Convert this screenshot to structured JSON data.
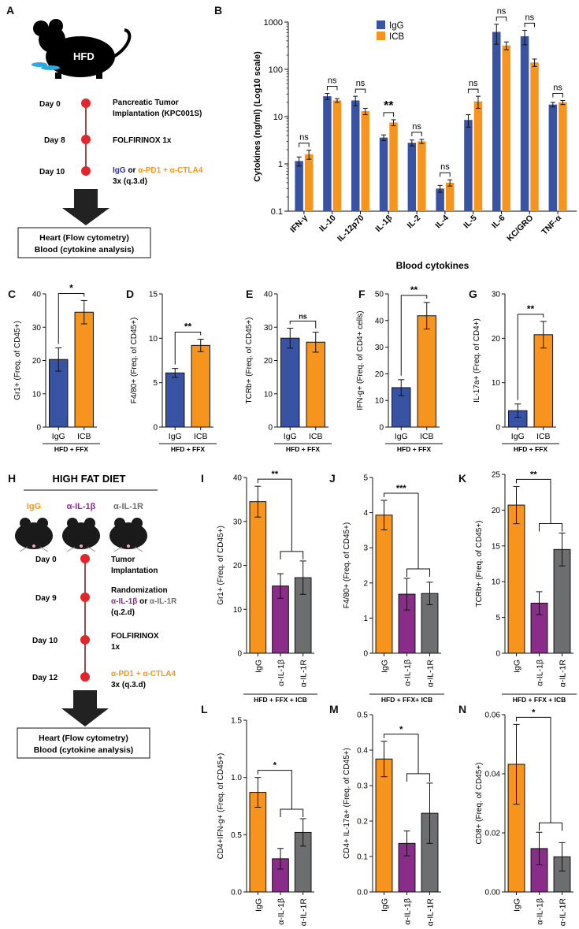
{
  "colors": {
    "igg_blue": "#3853a4",
    "icb_orange": "#f7941d",
    "il1b_purple": "#8b2c8b",
    "il1r_gray": "#6d6e70",
    "dot_red": "#e2262b",
    "text_blue": "#2e3192",
    "text_orange": "#f7941d"
  },
  "panel_letters": [
    "A",
    "B",
    "C",
    "D",
    "E",
    "F",
    "G",
    "H",
    "I",
    "J",
    "K",
    "L",
    "M",
    "N"
  ],
  "schematic_a": {
    "mouse_label": "HFD",
    "timeline": [
      {
        "day": "Day 0",
        "desc": [
          "Pancreatic Tumor",
          "Implantation (KPC001S)"
        ]
      },
      {
        "day": "Day 8",
        "desc": [
          "FOLFIRINOX 1x"
        ]
      },
      {
        "day": "Day 10",
        "desc_igg": "IgG",
        "desc_or": " or ",
        "desc_icb": "α-PD1 + α-CTLA4",
        "desc2": "3x (q.3.d)"
      }
    ],
    "box_lines": [
      "Heart (Flow cytometry)",
      "Blood (cytokine analysis)"
    ]
  },
  "schematic_h": {
    "title": "HIGH FAT DIET",
    "groups": [
      "IgG",
      "α-IL-1β",
      "α-IL-1R"
    ],
    "timeline": [
      {
        "day": "Day 0",
        "desc": [
          "Tumor",
          "Implantation"
        ]
      },
      {
        "day": "Day 9",
        "desc": [
          "Randomization"
        ],
        "desc_a": "α-IL-1β",
        "desc_or": " or ",
        "desc_b": "α-IL-1R",
        "desc3": "(q.2.d)"
      },
      {
        "day": "Day 10",
        "desc": [
          "FOLFIRINOX",
          "1x"
        ]
      },
      {
        "day": "Day 12",
        "desc_icb": "α-PD1 + α-CTLA4",
        "desc2": "3x (q.3.d)"
      }
    ],
    "box_lines": [
      "Heart (Flow cytometry)",
      "Blood (cytokine analysis)"
    ]
  },
  "chart_data": [
    {
      "id": "B",
      "type": "bar",
      "scale": "log10",
      "ylabel": "Cytokines (ng/ml) (Log10 scale)",
      "xlabel": "Blood cytokines",
      "ylim": [
        0.1,
        1000
      ],
      "yticks": [
        "0.1",
        "1",
        "10",
        "100",
        "1000"
      ],
      "legend": [
        "IgG",
        "ICB"
      ],
      "categories": [
        "IFN-γ",
        "IL-10",
        "IL-12p70",
        "IL-1β",
        "IL-2",
        "IL-4",
        "IL-5",
        "IL-6",
        "KC/GRO",
        "TNF-α"
      ],
      "series": [
        {
          "name": "IgG",
          "values": [
            1.15,
            27,
            22,
            3.6,
            2.8,
            0.3,
            8.5,
            620,
            500,
            18
          ],
          "errors": [
            0.25,
            4,
            5,
            0.5,
            0.4,
            0.05,
            2.5,
            280,
            170,
            2
          ]
        },
        {
          "name": "ICB",
          "values": [
            1.6,
            22,
            13,
            7.5,
            3.0,
            0.4,
            21,
            320,
            140,
            20
          ],
          "errors": [
            0.35,
            2,
            2,
            1.1,
            0.3,
            0.06,
            6,
            60,
            25,
            2
          ]
        }
      ],
      "significance": [
        "ns",
        "ns",
        "ns",
        "**",
        "ns",
        "ns",
        "ns",
        "ns",
        "ns",
        "ns"
      ]
    },
    {
      "id": "C",
      "type": "bar",
      "ylabel": "Gr1+ (Freq. of CD45+)",
      "ylim": [
        0,
        40
      ],
      "yticks": [
        "0",
        "10",
        "20",
        "30",
        "40"
      ],
      "categories": [
        "IgG",
        "ICB"
      ],
      "values": [
        20.3,
        34.5
      ],
      "errors": [
        3.5,
        3.5
      ],
      "sig": "*",
      "group_label": "HFD + FFX"
    },
    {
      "id": "D",
      "type": "bar",
      "ylabel": "F4/80+ (Freq. of CD45+)",
      "ylim": [
        0,
        15
      ],
      "yticks": [
        "0",
        "5",
        "10",
        "15"
      ],
      "categories": [
        "IgG",
        "ICB"
      ],
      "values": [
        6.1,
        9.2
      ],
      "errors": [
        0.5,
        0.7
      ],
      "sig": "**",
      "group_label": "HFD + FFX"
    },
    {
      "id": "E",
      "type": "bar",
      "ylabel": "TCRb+ (Freq. of CD45+)",
      "ylim": [
        0,
        40
      ],
      "yticks": [
        "0",
        "10",
        "20",
        "30",
        "40"
      ],
      "categories": [
        "IgG",
        "ICB"
      ],
      "values": [
        26.7,
        25.5
      ],
      "errors": [
        3.0,
        3.0
      ],
      "sig": "ns",
      "group_label": "HFD + FFX"
    },
    {
      "id": "F",
      "type": "bar",
      "ylabel": "IFN-g+ (Freq. of CD4+ cells)",
      "ylim": [
        0,
        50
      ],
      "yticks": [
        "0",
        "10",
        "20",
        "30",
        "40",
        "50"
      ],
      "categories": [
        "IgG",
        "ICB"
      ],
      "values": [
        14.8,
        41.8
      ],
      "errors": [
        3.0,
        5.0
      ],
      "sig": "**",
      "group_label": "HFD + FFX"
    },
    {
      "id": "G",
      "type": "bar",
      "ylabel": "IL-17a+ (Freq. of CD4+)",
      "ylim": [
        0,
        30
      ],
      "yticks": [
        "0",
        "10",
        "20",
        "30"
      ],
      "categories": [
        "IgG",
        "ICB"
      ],
      "values": [
        3.7,
        20.8
      ],
      "errors": [
        1.5,
        3.0
      ],
      "sig": "**",
      "group_label": "HFD + FFX"
    },
    {
      "id": "I",
      "type": "bar",
      "ylabel": "Gr1+ (Freq. of CD45+)",
      "ylim": [
        0,
        40
      ],
      "yticks": [
        "0",
        "10",
        "20",
        "30",
        "40"
      ],
      "categories": [
        "IgG",
        "α-IL-1β",
        "α-IL-1R"
      ],
      "values": [
        34.5,
        15.3,
        17.2
      ],
      "errors": [
        3.5,
        2.8,
        3.8
      ],
      "sig": "**",
      "group_label": "HFD + FFX + ICB"
    },
    {
      "id": "J",
      "type": "bar",
      "ylabel": "F4/80+ (Freq. of CD45+)",
      "ylim": [
        0,
        5
      ],
      "yticks": [
        "0",
        "1",
        "2",
        "3",
        "4",
        "5"
      ],
      "categories": [
        "IgG",
        "α-IL-1β",
        "α-IL-1R"
      ],
      "values": [
        3.93,
        1.68,
        1.7
      ],
      "errors": [
        0.42,
        0.45,
        0.32
      ],
      "sig": "***",
      "group_label": "HFD + FFX+ ICB"
    },
    {
      "id": "K",
      "type": "bar",
      "ylabel": "TCRb+ (Freq. of CD45+)",
      "ylim": [
        0,
        25
      ],
      "yticks": [
        "0",
        "5",
        "10",
        "15",
        "20",
        "25"
      ],
      "categories": [
        "IgG",
        "α-IL-1β",
        "α-IL-1R"
      ],
      "values": [
        20.7,
        7.0,
        14.5
      ],
      "errors": [
        2.6,
        1.6,
        2.3
      ],
      "sig": "**",
      "group_label": "HFD + FFX + ICB"
    },
    {
      "id": "L",
      "type": "bar",
      "ylabel": "CD4+IFN-g+ (Freq. of CD45+)",
      "ylim": [
        0,
        1.5
      ],
      "yticks": [
        "0.0",
        "0.5",
        "1.0",
        "1.5"
      ],
      "categories": [
        "IgG",
        "α-IL-1β",
        "α-IL-1R"
      ],
      "values": [
        0.87,
        0.29,
        0.52
      ],
      "errors": [
        0.13,
        0.09,
        0.12
      ],
      "sig": "*",
      "group_label": "HFD + FFX + ICB"
    },
    {
      "id": "M",
      "type": "bar",
      "ylabel": "CD4+ IL-17a+ (Freq. of CD45+)",
      "ylim": [
        0,
        0.5
      ],
      "yticks": [
        "0.0",
        "0.1",
        "0.2",
        "0.3",
        "0.4",
        "0.5"
      ],
      "categories": [
        "IgG",
        "α-IL-1β",
        "α-IL-1R"
      ],
      "values": [
        0.375,
        0.137,
        0.222
      ],
      "errors": [
        0.05,
        0.035,
        0.085
      ],
      "sig": "*",
      "group_label": "HFD + FFX + ICB"
    },
    {
      "id": "N",
      "type": "bar",
      "ylabel": "CD8+ (Freq. of CD45+)",
      "ylim": [
        0,
        0.06
      ],
      "yticks": [
        "0.00",
        "0.02",
        "0.04",
        "0.06"
      ],
      "categories": [
        "IgG",
        "α-IL-1β",
        "α-IL-1R"
      ],
      "values": [
        0.0432,
        0.0147,
        0.0119
      ],
      "errors": [
        0.0135,
        0.0055,
        0.0048
      ],
      "sig": "*",
      "group_label": "HFD + FFX + ICB"
    }
  ]
}
